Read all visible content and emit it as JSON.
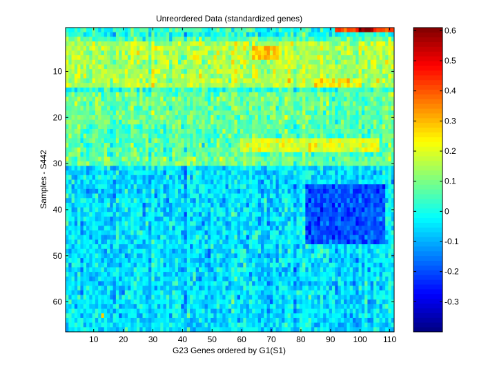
{
  "chart_data": {
    "type": "heatmap",
    "title": "Unreordered Data (standardized genes)",
    "xlabel": "G23 Genes ordered by G1(S1)",
    "ylabel": "Samples - S442",
    "n_rows": 66,
    "n_cols": 111,
    "x_ticks": [
      10,
      20,
      30,
      40,
      50,
      60,
      70,
      80,
      90,
      100,
      110
    ],
    "y_ticks": [
      10,
      20,
      30,
      40,
      50,
      60
    ],
    "colorbar": {
      "colormap": "jet",
      "range": [
        -0.4,
        0.61
      ],
      "ticks": [
        -0.3,
        -0.2,
        -0.1,
        0,
        0.1,
        0.2,
        0.3,
        0.4,
        0.5,
        0.6
      ]
    },
    "row_profile": [
      {
        "rows": [
          1,
          1
        ],
        "mean": 0.02
      },
      {
        "rows": [
          2,
          2
        ],
        "mean": 0.0
      },
      {
        "rows": [
          3,
          3
        ],
        "mean": 0.06
      },
      {
        "rows": [
          4,
          13
        ],
        "mean": 0.15
      },
      {
        "rows": [
          14,
          14
        ],
        "mean": 0.03
      },
      {
        "rows": [
          15,
          21
        ],
        "mean": 0.08
      },
      {
        "rows": [
          22,
          28
        ],
        "mean": 0.06
      },
      {
        "rows": [
          29,
          30
        ],
        "mean": 0.09
      },
      {
        "rows": [
          31,
          66
        ],
        "mean": -0.05
      }
    ],
    "hotspots": [
      {
        "rows": [
          1,
          1
        ],
        "cols": [
          92,
          111
        ],
        "value": 0.42
      },
      {
        "rows": [
          1,
          1
        ],
        "cols": [
          100,
          104
        ],
        "value": 0.6
      },
      {
        "rows": [
          5,
          7
        ],
        "cols": [
          64,
          72
        ],
        "value": 0.28
      },
      {
        "rows": [
          12,
          13
        ],
        "cols": [
          85,
          100
        ],
        "value": 0.24
      },
      {
        "rows": [
          25,
          27
        ],
        "cols": [
          60,
          106
        ],
        "value": 0.2
      },
      {
        "rows": [
          35,
          47
        ],
        "cols": [
          82,
          108
        ],
        "value": -0.2
      },
      {
        "rows": [
          63,
          63
        ],
        "cols": [
          13,
          13
        ],
        "value": 0.28
      }
    ]
  }
}
